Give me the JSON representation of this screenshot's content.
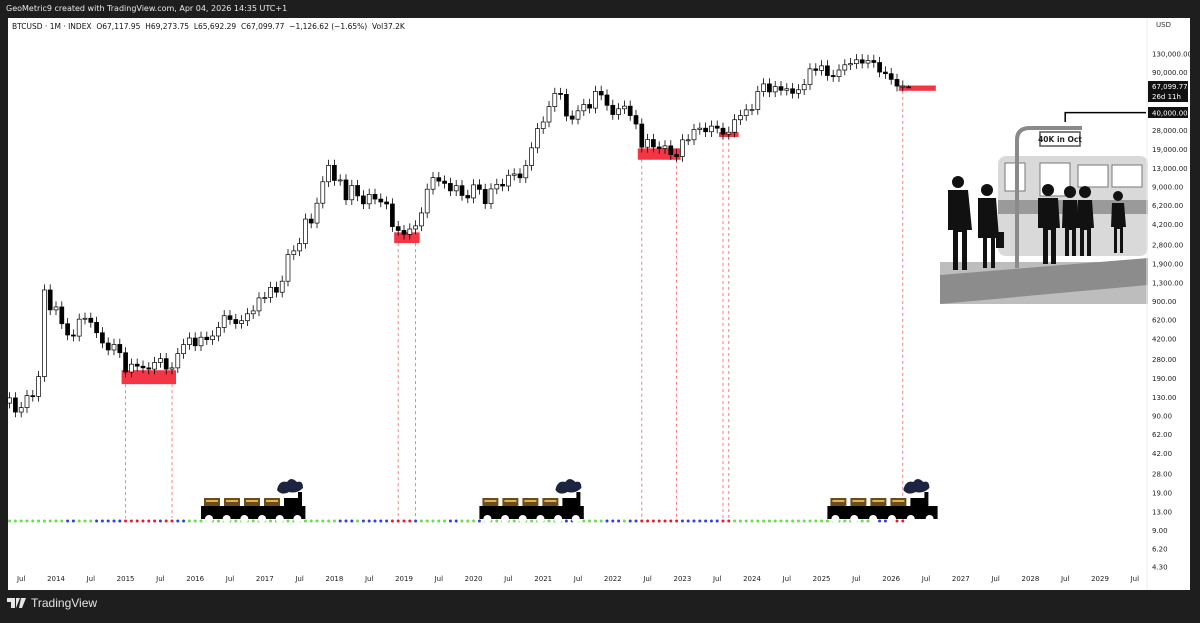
{
  "header": {
    "credit": "GeoMetric9 created with TradingView.com, Apr 04, 2026 14:35 UTC+1"
  },
  "legend": {
    "symbol": "BTCUSD · 1M · INDEX",
    "open": "O67,117.95",
    "high": "H69,273.75",
    "low": "L65,692.29",
    "close": "C67,099.77",
    "change": "−1,126.62 (−1.65%)",
    "volume": "Vol37.2K"
  },
  "footer": {
    "brand": "TradingView"
  },
  "annotations": {
    "sign_text": "40K in Oct",
    "target_level": "40,000.00",
    "last_price": "67,099.77",
    "countdown": "26d 11h"
  },
  "colors": {
    "up_body": "#ffffff",
    "down_body": "#000000",
    "zone": "#f23645",
    "dot_green": "#66e04a",
    "dot_blue": "#2f3ee8",
    "dot_red": "#e8192c"
  },
  "chart_data": {
    "type": "candlestick",
    "title": "BTCUSD · 1M · INDEX",
    "scale": "log",
    "grid": false,
    "currency": "USD",
    "start_month": "2013-05",
    "ylim": [
      4.3,
      150000
    ],
    "y_ticks": [
      "130,000.00",
      "90,000.00",
      "40,000.00",
      "28,000.00",
      "19,000.00",
      "13,000.00",
      "9,000.00",
      "6,200.00",
      "4,200.00",
      "2,800.00",
      "1,900.00",
      "1,300.00",
      "900.00",
      "620.00",
      "420.00",
      "280.00",
      "190.00",
      "130.00",
      "90.00",
      "62.00",
      "42.00",
      "28.00",
      "19.00",
      "13.00",
      "9.00",
      "6.20",
      "4.30"
    ],
    "y_tick_values": [
      130000,
      90000,
      40000,
      28000,
      19000,
      13000,
      9000,
      6200,
      4200,
      2800,
      1900,
      1300,
      900,
      620,
      420,
      280,
      190,
      130,
      90,
      62,
      42,
      28,
      19,
      13,
      9,
      6.2,
      4.3
    ],
    "x_ticks": [
      "Jul",
      "2014",
      "Jul",
      "2015",
      "Jul",
      "2016",
      "Jul",
      "2017",
      "Jul",
      "2018",
      "Jul",
      "2019",
      "Jul",
      "2020",
      "Jul",
      "2021",
      "Jul",
      "2022",
      "Jul",
      "2023",
      "Jul",
      "2024",
      "Jul",
      "2025",
      "Jul",
      "2026",
      "Jul",
      "2027",
      "Jul",
      "2028",
      "Jul",
      "2029",
      "Jul"
    ],
    "x_tick_months": [
      "2013-07",
      "2014-01",
      "2014-07",
      "2015-01",
      "2015-07",
      "2016-01",
      "2016-07",
      "2017-01",
      "2017-07",
      "2018-01",
      "2018-07",
      "2019-01",
      "2019-07",
      "2020-01",
      "2020-07",
      "2021-01",
      "2021-07",
      "2022-01",
      "2022-07",
      "2023-01",
      "2023-07",
      "2024-01",
      "2024-07",
      "2025-01",
      "2025-07",
      "2026-01",
      "2026-07",
      "2027-01",
      "2027-07",
      "2028-01",
      "2028-07",
      "2029-01",
      "2029-07"
    ],
    "close": [
      129,
      97,
      106,
      135,
      133,
      198,
      1130,
      757,
      803,
      573,
      457,
      447,
      628,
      640,
      589,
      478,
      389,
      338,
      378,
      320,
      217,
      254,
      244,
      236,
      230,
      263,
      284,
      230,
      236,
      314,
      377,
      430,
      368,
      437,
      416,
      448,
      531,
      673,
      624,
      575,
      609,
      700,
      742,
      963,
      970,
      1190,
      1080,
      1348,
      2300,
      2480,
      2875,
      4700,
      4340,
      6470,
      9950,
      13850,
      10220,
      10330,
      6930,
      9240,
      7490,
      6390,
      7730,
      7030,
      6630,
      6370,
      4040,
      3740,
      3460,
      3850,
      4100,
      5320,
      8570,
      10820,
      10080,
      9630,
      8290,
      9200,
      7560,
      7190,
      9350,
      8540,
      6410,
      8620,
      9450,
      9140,
      11350,
      11660,
      10780,
      13800,
      19700,
      28990,
      33110,
      45140,
      58800,
      57750,
      37330,
      35040,
      41460,
      47130,
      43790,
      61320,
      57000,
      46310,
      38480,
      43190,
      45540,
      37710,
      31790,
      19940,
      23300,
      20050,
      19430,
      20490,
      17170,
      16540,
      23130,
      23150,
      28480,
      29250,
      27220,
      30480,
      29230,
      25940,
      26970,
      34660,
      37720,
      42280,
      42580,
      61130,
      71280,
      60640,
      67490,
      62680,
      64620,
      58970,
      63330,
      70220,
      96450,
      93430,
      102400,
      84350,
      82550,
      94200,
      104600,
      107100,
      115750,
      108250,
      114050,
      109600,
      90400,
      87500,
      78000,
      68200,
      68226.39,
      67099.77
    ],
    "last_candle": {
      "month": "2026-04",
      "open": 67117.95,
      "high": 69273.75,
      "low": 65692.29,
      "close": 67099.77
    },
    "month_dots": "ggggggggggbbgggbbbbbrrrrrrbrrbbggggggggggggggggggggggggggbbbgbbbbbrrrrbgggggbbgggbggggggggggggggbbgggggbbbgbbrrrrrrrbbbbbbbrrggggggggggggggggggggggggbbbbrr",
    "highlight_zones": [
      {
        "from": "2015-01",
        "to": "2015-09",
        "low": 170,
        "high": 225
      },
      {
        "from": "2018-12",
        "to": "2019-03",
        "low": 2900,
        "high": 3600
      },
      {
        "from": "2022-06",
        "to": "2022-12",
        "low": 15500,
        "high": 19500
      },
      {
        "from": "2023-08",
        "to": "2023-10",
        "low": 24500,
        "high": 27000
      },
      {
        "from": "2026-03",
        "to": "2026-08",
        "low": 62000,
        "high": 69000
      }
    ],
    "marker_months": [
      "2015-01",
      "2015-09",
      "2018-12",
      "2019-03",
      "2022-06",
      "2022-12",
      "2023-08",
      "2023-09",
      "2026-03"
    ],
    "trains": [
      {
        "from": "2016-02",
        "to": "2017-08"
      },
      {
        "from": "2020-02",
        "to": "2021-08"
      },
      {
        "from": "2025-02",
        "to": "2026-09"
      }
    ],
    "target_line": {
      "price": 40000,
      "from": "2028-07"
    }
  }
}
